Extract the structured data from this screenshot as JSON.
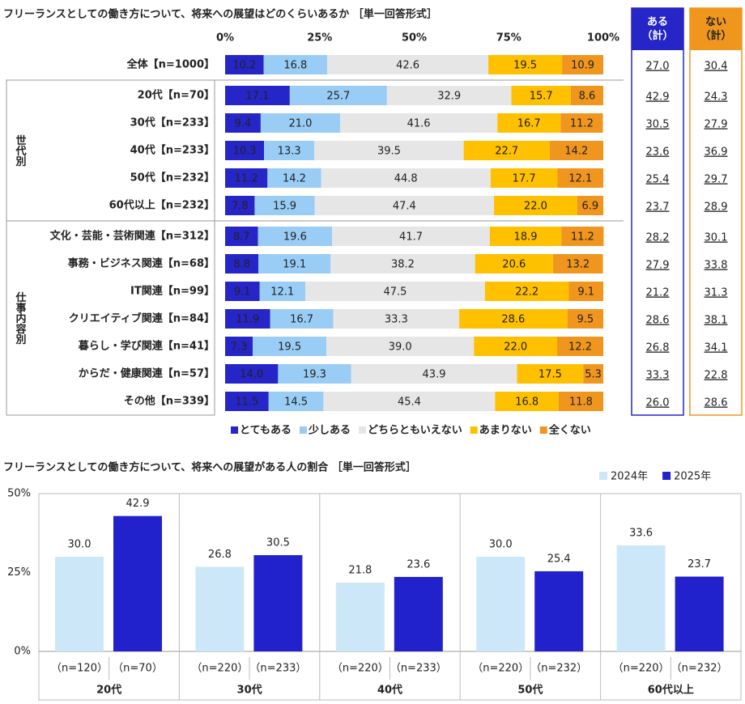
{
  "chart_data": [
    {
      "type": "stacked_bar_h",
      "title": "フリーランスとしての働き方について、将来への展望はどのくらいあるか ［単一回答形式］",
      "categories": [
        "全体【n=1000】",
        "20代【n=70】",
        "30代【n=233】",
        "40代【n=233】",
        "50代【n=232】",
        "60代以上【n=232】",
        "文化・芸能・芸術関連【n=312】",
        "事務・ビジネス関連【n=68】",
        "IT関連【n=99】",
        "クリエイティブ関連【n=84】",
        "暮らし・学び関連【n=41】",
        "からだ・健康関連【n=57】",
        "その他【n=339】"
      ],
      "groups": [
        {
          "label": "世代別",
          "rows": 5
        },
        {
          "label": "仕事内容別",
          "rows": 7
        }
      ],
      "xlim": [
        0,
        100
      ],
      "xticks": [
        {
          "value": 0,
          "label": "0%"
        },
        {
          "value": 25,
          "label": "25%"
        },
        {
          "value": 50,
          "label": "50%"
        },
        {
          "value": 75,
          "label": "75%"
        },
        {
          "value": 100,
          "label": "100%"
        }
      ],
      "legend": "bottom",
      "series": [
        {
          "name": "とてもある",
          "color": "#2525c8",
          "values": [
            10.2,
            17.1,
            9.4,
            10.3,
            11.2,
            7.8,
            8.7,
            8.8,
            9.1,
            11.9,
            7.3,
            14.0,
            11.5
          ],
          "value_labels": [
            "10.2",
            "17.1",
            "9.4",
            "10.3",
            "11.2",
            "7.8",
            "8.7",
            "8.8",
            "9.1",
            "11.9",
            "7.3",
            "14.0",
            "11.5"
          ]
        },
        {
          "name": "少しある",
          "color": "#99cdf5",
          "values": [
            16.8,
            25.7,
            21.0,
            13.3,
            14.2,
            15.9,
            19.6,
            19.1,
            12.1,
            16.7,
            19.5,
            19.3,
            14.5
          ],
          "value_labels": [
            "16.8",
            "25.7",
            "21.0",
            "13.3",
            "14.2",
            "15.9",
            "19.6",
            "19.1",
            "12.1",
            "16.7",
            "19.5",
            "19.3",
            "14.5"
          ]
        },
        {
          "name": "どちらともいえない",
          "color": "#e6e6e6",
          "values": [
            42.6,
            32.9,
            41.6,
            39.5,
            44.8,
            47.4,
            41.7,
            38.2,
            47.5,
            33.3,
            39.0,
            43.9,
            45.4
          ],
          "value_labels": [
            "42.6",
            "32.9",
            "41.6",
            "39.5",
            "44.8",
            "47.4",
            "41.7",
            "38.2",
            "47.5",
            "33.3",
            "39.0",
            "43.9",
            "45.4"
          ]
        },
        {
          "name": "あまりない",
          "color": "#ffc000",
          "values": [
            19.5,
            15.7,
            16.7,
            22.7,
            17.7,
            22.0,
            18.9,
            20.6,
            22.2,
            28.6,
            22.0,
            17.5,
            16.8
          ],
          "value_labels": [
            "19.5",
            "15.7",
            "16.7",
            "22.7",
            "17.7",
            "22.0",
            "18.9",
            "20.6",
            "22.2",
            "28.6",
            "22.0",
            "17.5",
            "16.8"
          ]
        },
        {
          "name": "全くない",
          "color": "#f0961e",
          "values": [
            10.9,
            8.6,
            11.2,
            14.2,
            12.1,
            6.9,
            11.2,
            13.2,
            9.1,
            9.5,
            12.2,
            5.3,
            11.8
          ],
          "value_labels": [
            "10.9",
            "8.6",
            "11.2",
            "14.2",
            "12.1",
            "6.9",
            "11.2",
            "13.2",
            "9.1",
            "9.5",
            "12.2",
            "5.3",
            "11.8"
          ]
        }
      ],
      "summary": [
        {
          "name": "ある（計）",
          "color": "#2525c8",
          "values": [
            27.0,
            42.9,
            30.5,
            23.6,
            25.4,
            23.7,
            28.2,
            27.9,
            21.2,
            28.6,
            26.8,
            33.3,
            26.0
          ],
          "value_labels": [
            "27.0",
            "42.9",
            "30.5",
            "23.6",
            "25.4",
            "23.7",
            "28.2",
            "27.9",
            "21.2",
            "28.6",
            "26.8",
            "33.3",
            "26.0"
          ]
        },
        {
          "name": "ない（計）",
          "color": "#f0961e",
          "values": [
            30.4,
            24.3,
            27.9,
            36.9,
            29.7,
            28.9,
            30.1,
            33.8,
            31.3,
            38.1,
            34.1,
            22.8,
            28.6
          ],
          "value_labels": [
            "30.4",
            "24.3",
            "27.9",
            "36.9",
            "29.7",
            "28.9",
            "30.1",
            "33.8",
            "31.3",
            "38.1",
            "34.1",
            "22.8",
            "28.6"
          ]
        }
      ]
    },
    {
      "type": "grouped_bar",
      "title": "フリーランスとしての働き方について、将来への展望がある人の割合 ［単一回答形式］",
      "categories": [
        "20代",
        "30代",
        "40代",
        "50代",
        "60代以上"
      ],
      "ylim": [
        0,
        50
      ],
      "yticks": [
        {
          "value": 0,
          "label": "0%"
        },
        {
          "value": 25,
          "label": "25%"
        },
        {
          "value": 50,
          "label": "50%"
        }
      ],
      "legend": "top-right",
      "series": [
        {
          "name": "2024年",
          "color": "#cce8f8",
          "values": [
            30.0,
            26.8,
            21.8,
            30.0,
            33.6
          ],
          "value_labels": [
            "30.0",
            "26.8",
            "21.8",
            "30.0",
            "33.6"
          ],
          "sample_sizes": [
            "（n=120）",
            "（n=220）",
            "（n=220）",
            "（n=220）",
            "（n=220）"
          ]
        },
        {
          "name": "2025年",
          "color": "#2222cc",
          "values": [
            42.9,
            30.5,
            23.6,
            25.4,
            23.7
          ],
          "value_labels": [
            "42.9",
            "30.5",
            "23.6",
            "25.4",
            "23.7"
          ],
          "sample_sizes": [
            "（n=70）",
            "（n=233）",
            "（n=233）",
            "（n=232）",
            "（n=232）"
          ]
        }
      ]
    }
  ]
}
